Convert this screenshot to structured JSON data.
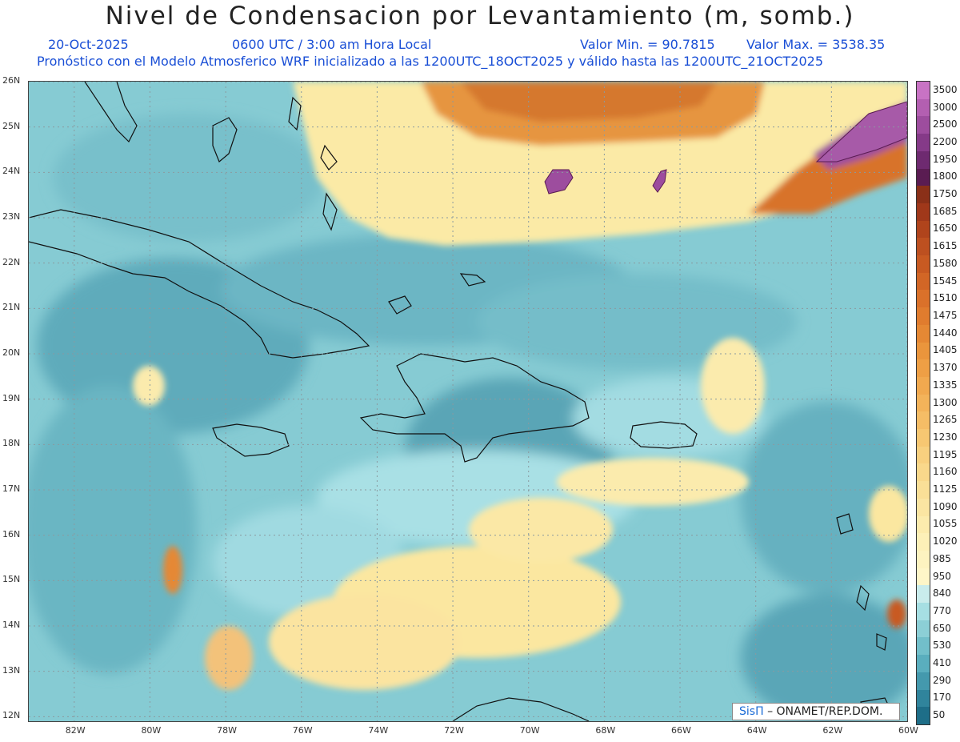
{
  "title": "Nivel de Condensacion por Levantamiento (m, somb.)",
  "date": "20-Oct-2025",
  "time": "0600 UTC / 3:00 am Hora Local",
  "min_label": "Valor Min. = 90.7815",
  "max_label": "Valor Max. = 3538.35",
  "model_line": "Pronóstico con el Modelo Atmosferico WRF inicializado a las 1200UTC_18OCT2025 y válido hasta las  1200UTC_21OCT2025",
  "credit": {
    "brand": "SisΠ",
    "text": "– ONAMET/REP.DOM."
  },
  "map": {
    "lon_range": [
      -83.2,
      -60
    ],
    "lat_range": [
      11.9,
      26
    ],
    "lon_ticks": [
      "82W",
      "80W",
      "78W",
      "76W",
      "74W",
      "72W",
      "70W",
      "68W",
      "66W",
      "64W",
      "62W",
      "60W"
    ],
    "lat_ticks": [
      "26N",
      "25N",
      "24N",
      "23N",
      "22N",
      "21N",
      "20N",
      "19N",
      "18N",
      "17N",
      "16N",
      "15N",
      "14N",
      "13N",
      "12N"
    ],
    "grid": true
  },
  "colorbar": {
    "levels": [
      "3500",
      "3000",
      "2500",
      "2200",
      "1950",
      "1800",
      "1750",
      "1685",
      "1650",
      "1615",
      "1580",
      "1545",
      "1510",
      "1475",
      "1440",
      "1405",
      "1370",
      "1335",
      "1300",
      "1265",
      "1230",
      "1195",
      "1160",
      "1125",
      "1090",
      "1055",
      "1020",
      "985",
      "950",
      "840",
      "770",
      "650",
      "530",
      "410",
      "290",
      "170",
      "50"
    ],
    "colors": [
      "#c873c4",
      "#b35fb1",
      "#9d4d9e",
      "#853a88",
      "#6e2a70",
      "#5a1c52",
      "#8a3018",
      "#a0381a",
      "#b0441c",
      "#bd5020",
      "#c85a22",
      "#d26626",
      "#da712a",
      "#e07c2e",
      "#e58834",
      "#ea953c",
      "#ee9f45",
      "#f1a94f",
      "#f3b35a",
      "#f5bd66",
      "#f7c772",
      "#f8d07f",
      "#f9d88b",
      "#fadf97",
      "#fbe5a2",
      "#fcebad",
      "#fdf0b8",
      "#fdf3c0",
      "#fef6c8",
      "#c9ecec",
      "#a6dfe3",
      "#8ccfd6",
      "#72bfca",
      "#5aaebe",
      "#4499ad",
      "#30849c",
      "#1e6e88"
    ]
  }
}
